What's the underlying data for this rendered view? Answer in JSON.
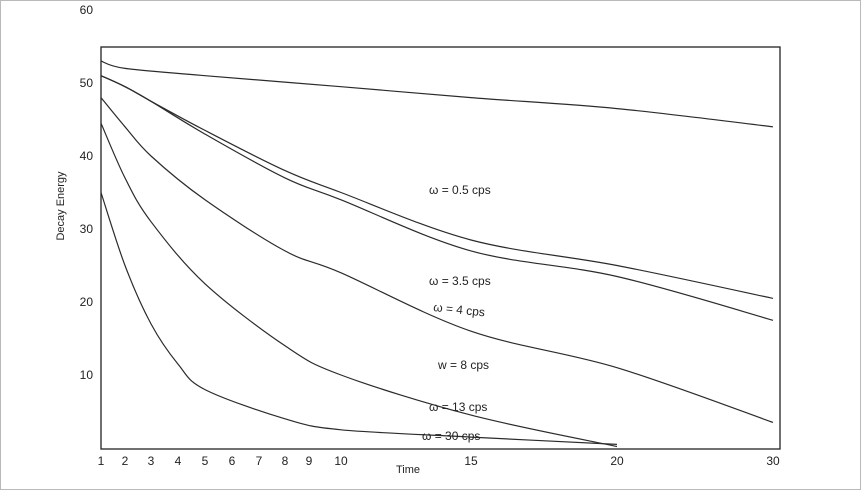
{
  "chart_data": {
    "type": "line",
    "title": "",
    "xlabel": "Time",
    "ylabel": "Decay Energy",
    "xlim": [
      1,
      30
    ],
    "ylim": [
      0,
      80
    ],
    "x_ticks": [
      1,
      2,
      3,
      4,
      5,
      6,
      7,
      8,
      9,
      10,
      15,
      20,
      30
    ],
    "y_ticks": [
      10,
      20,
      30,
      40,
      50,
      60
    ],
    "grid": false,
    "legend": "inline labels",
    "series": [
      {
        "name": "ω = 0.5 cps",
        "x": [
          1,
          2,
          5,
          10,
          15,
          20,
          30
        ],
        "y": [
          53,
          52,
          51,
          49.5,
          48,
          46.5,
          44
        ]
      },
      {
        "name": "ω = 3.5 cps",
        "x": [
          1,
          2,
          3,
          5,
          8,
          10,
          15,
          20,
          30
        ],
        "y": [
          51,
          49.5,
          47.5,
          43.5,
          38,
          35,
          28.5,
          25,
          20.5
        ]
      },
      {
        "name": "ω = 4 cps",
        "x": [
          1,
          2,
          3,
          5,
          8,
          10,
          15,
          20,
          30
        ],
        "y": [
          51,
          49.5,
          47.5,
          43,
          37,
          34,
          27,
          23.5,
          17.5
        ]
      },
      {
        "name": "w = 8 cps",
        "x": [
          1,
          2,
          3,
          5,
          8,
          10,
          15,
          20,
          30
        ],
        "y": [
          48,
          44,
          40,
          34,
          27,
          24,
          16,
          11,
          3.5
        ]
      },
      {
        "name": "ω = 13 cps",
        "x": [
          1,
          2,
          3,
          5,
          8,
          10,
          15,
          20
        ],
        "y": [
          44.5,
          37,
          31,
          22.5,
          14,
          10,
          4.5,
          0.2
        ]
      },
      {
        "name": "ω = 30 cps",
        "x": [
          1,
          2,
          3,
          4,
          5,
          8,
          10,
          15,
          20
        ],
        "y": [
          35,
          25,
          17,
          11.5,
          8,
          4,
          2.5,
          1.5,
          0.5
        ]
      }
    ]
  }
}
